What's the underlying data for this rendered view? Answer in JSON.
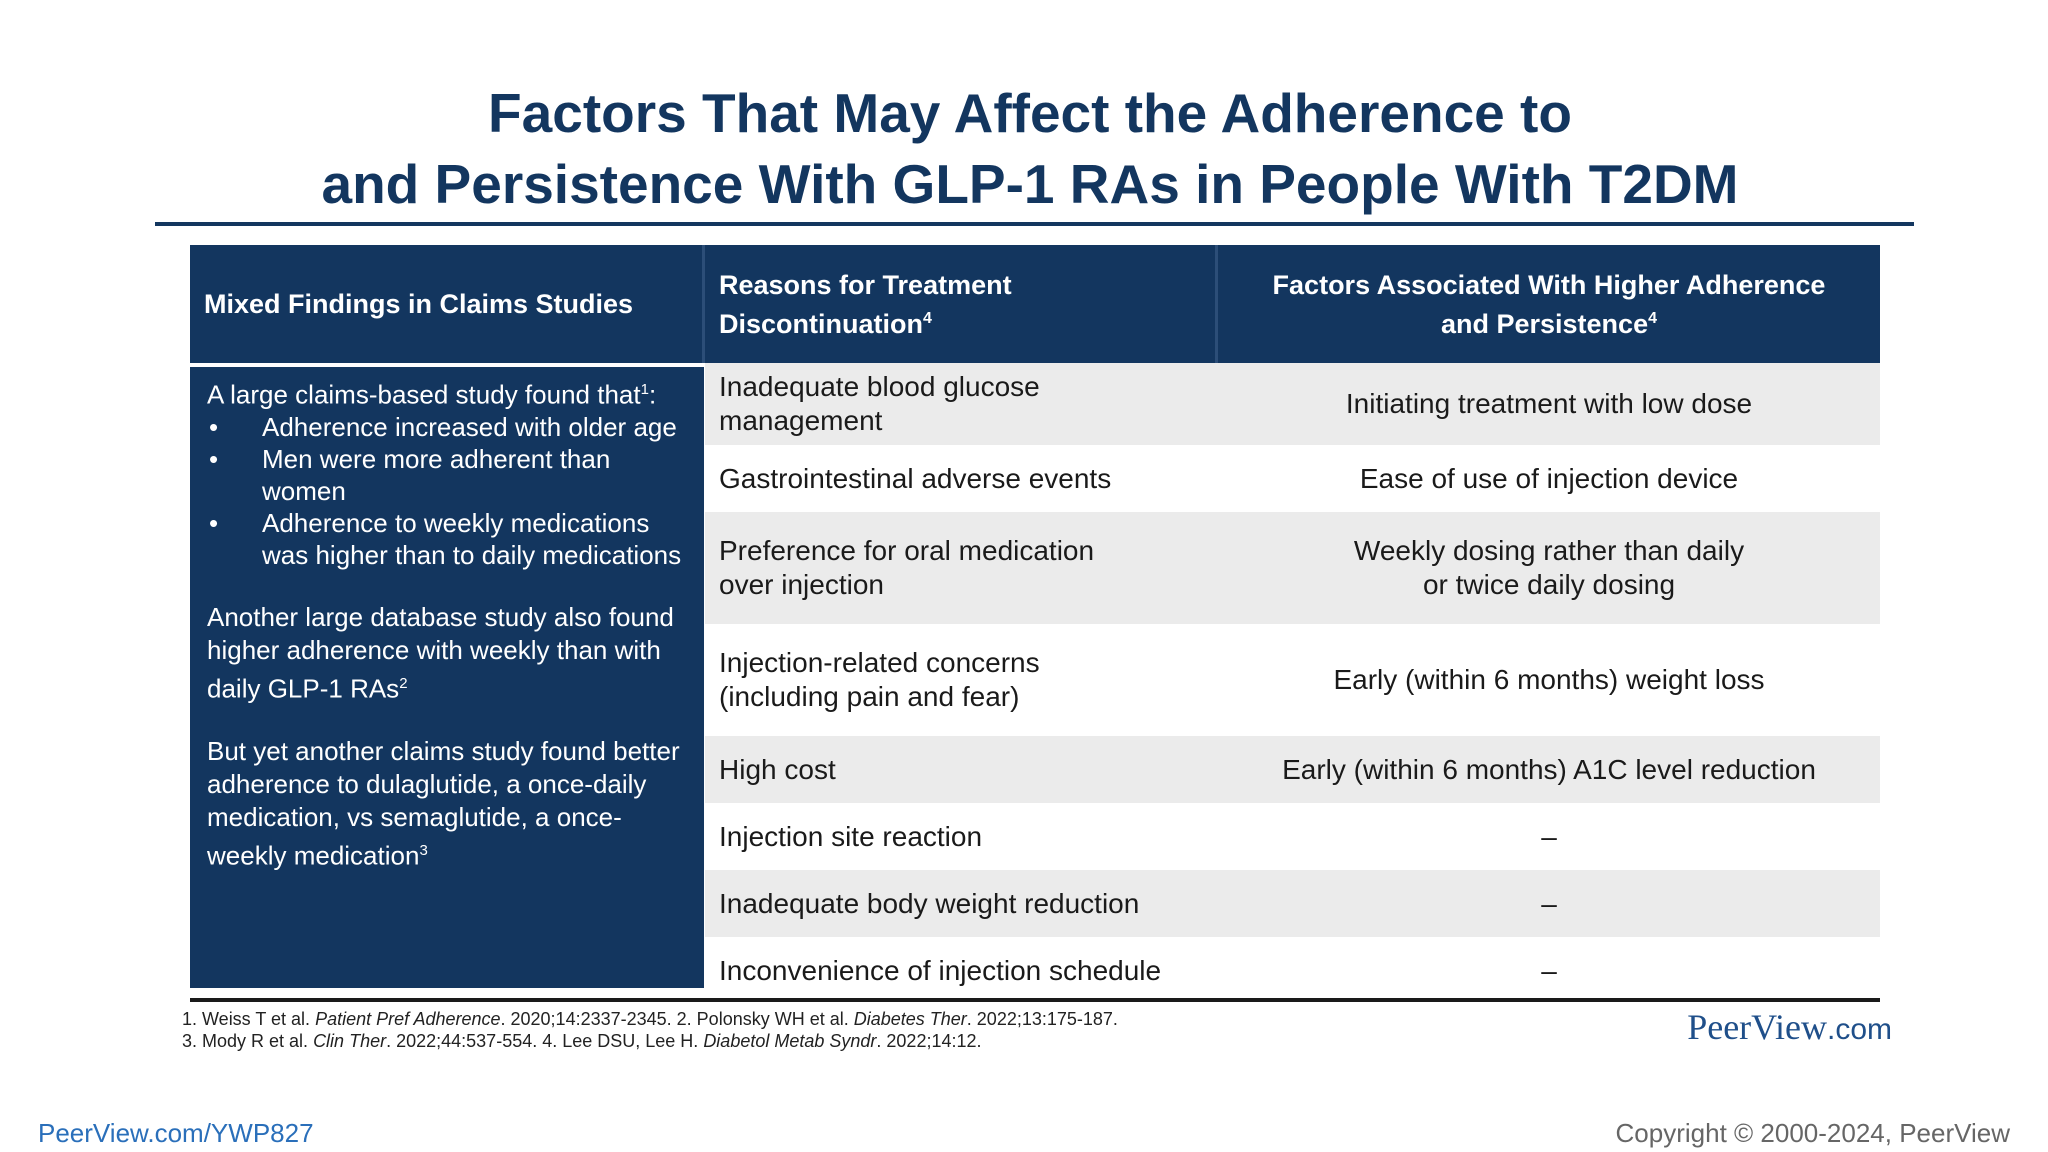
{
  "title": {
    "line1": "Factors That May Affect the Adherence to",
    "line2": "and Persistence With GLP-1 RAs in People With T2DM"
  },
  "table": {
    "headers": {
      "col1": "Mixed Findings in Claims Studies",
      "col2_line1": "Reasons for Treatment",
      "col2_line2": "Discontinuation",
      "col2_sup": "4",
      "col3_line1": "Factors Associated With Higher Adherence",
      "col3_line2": "and Persistence",
      "col3_sup": "4"
    },
    "left_panel": {
      "intro": "A large claims-based study found that",
      "intro_sup": "1",
      "intro_colon": ":",
      "bullets": [
        "Adherence increased with older age",
        "Men were more adherent than women",
        "Adherence to weekly medications was higher than to daily medications"
      ],
      "para2": "Another large database study also found higher adherence with weekly than with daily GLP-1 RAs",
      "para2_sup": "2",
      "para3": "But yet another claims study found better adherence to dulaglutide, a once-daily medication, vs semaglutide, a once-weekly medication",
      "para3_sup": "3"
    },
    "rows": [
      {
        "reason_l1": "Inadequate blood glucose",
        "reason_l2": "management",
        "factor_l1": "Initiating treatment with low dose",
        "factor_l2": ""
      },
      {
        "reason_l1": "Gastrointestinal adverse events",
        "reason_l2": "",
        "factor_l1": "Ease of use of injection device",
        "factor_l2": ""
      },
      {
        "reason_l1": "Preference for oral medication",
        "reason_l2": "over injection",
        "factor_l1": "Weekly dosing rather than daily",
        "factor_l2": "or twice daily dosing"
      },
      {
        "reason_l1": "Injection-related concerns",
        "reason_l2": "(including pain and fear)",
        "factor_l1": "Early (within 6 months) weight loss",
        "factor_l2": ""
      },
      {
        "reason_l1": "High cost",
        "reason_l2": "",
        "factor_l1": "Early (within 6 months) A1C level reduction",
        "factor_l2": ""
      },
      {
        "reason_l1": "Injection site reaction",
        "reason_l2": "",
        "factor_l1": "–",
        "factor_l2": ""
      },
      {
        "reason_l1": "Inadequate body weight reduction",
        "reason_l2": "",
        "factor_l1": "–",
        "factor_l2": ""
      },
      {
        "reason_l1": "Inconvenience of injection schedule",
        "reason_l2": "",
        "factor_l1": "–",
        "factor_l2": ""
      }
    ]
  },
  "references": {
    "line1": [
      {
        "t": "1. Weiss T et al. ",
        "i": false
      },
      {
        "t": "Patient Pref Adherence",
        "i": true
      },
      {
        "t": ". 2020;14:2337-2345. 2. Polonsky WH et al. ",
        "i": false
      },
      {
        "t": "Diabetes Ther",
        "i": true
      },
      {
        "t": ". 2022;13:175-187.",
        "i": false
      }
    ],
    "line2": [
      {
        "t": "3. Mody R et al. ",
        "i": false
      },
      {
        "t": "Clin Ther",
        "i": true
      },
      {
        "t": ". 2022;44:537-554. 4. Lee DSU, Lee H. ",
        "i": false
      },
      {
        "t": "Diabetol Metab Syndr",
        "i": true
      },
      {
        "t": ". 2022;14:12.",
        "i": false
      }
    ]
  },
  "brand": {
    "name": "PeerView",
    "suffix": ".com"
  },
  "footer": {
    "link": "PeerView.com/YWP827",
    "copyright": "Copyright © 2000-2024, PeerView"
  },
  "colors": {
    "navy": "#13365f",
    "row_shade": "#ebebeb",
    "link": "#2a6fba"
  }
}
